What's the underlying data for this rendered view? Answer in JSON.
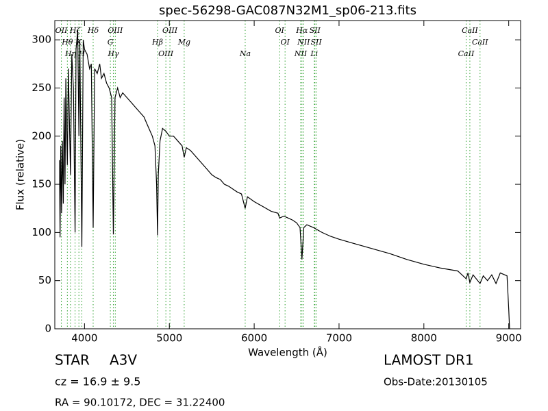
{
  "chart_data": {
    "type": "line",
    "title": "spec-56298-GAC087N32M1_sp06-213.fits",
    "x_label": "Wavelength (Å)",
    "y_label": "Flux (relative)",
    "color": "#000000",
    "xlim": [
      3650,
      9140
    ],
    "ylim": [
      0,
      320
    ],
    "xticks": [
      4000,
      5000,
      6000,
      7000,
      8000,
      9000
    ],
    "yticks": [
      0,
      50,
      100,
      150,
      200,
      250,
      300
    ],
    "x": [
      3705,
      3712,
      3720,
      3730,
      3740,
      3750,
      3760,
      3770,
      3780,
      3798,
      3810,
      3835,
      3850,
      3870,
      3889,
      3900,
      3920,
      3934,
      3945,
      3969,
      3985,
      4000,
      4030,
      4060,
      4080,
      4102,
      4120,
      4150,
      4180,
      4200,
      4230,
      4260,
      4290,
      4320,
      4340,
      4360,
      4390,
      4420,
      4450,
      4500,
      4550,
      4600,
      4650,
      4700,
      4750,
      4800,
      4830,
      4850,
      4861,
      4870,
      4890,
      4920,
      4960,
      5000,
      5050,
      5100,
      5150,
      5175,
      5200,
      5250,
      5300,
      5350,
      5400,
      5450,
      5500,
      5550,
      5600,
      5650,
      5700,
      5750,
      5800,
      5850,
      5894,
      5920,
      6000,
      6100,
      6200,
      6280,
      6300,
      6350,
      6400,
      6450,
      6500,
      6540,
      6563,
      6585,
      6620,
      6700,
      6800,
      6900,
      7000,
      7200,
      7400,
      7600,
      7800,
      8000,
      8200,
      8400,
      8498,
      8520,
      8542,
      8580,
      8662,
      8700,
      8750,
      8800,
      8850,
      8900,
      8980,
      9000,
      9010
    ],
    "values": [
      175,
      95,
      190,
      120,
      195,
      130,
      240,
      150,
      260,
      170,
      270,
      160,
      285,
      250,
      100,
      290,
      310,
      200,
      300,
      85,
      300,
      290,
      285,
      270,
      275,
      105,
      270,
      265,
      275,
      260,
      265,
      255,
      250,
      240,
      98,
      240,
      250,
      240,
      245,
      240,
      235,
      230,
      225,
      220,
      210,
      200,
      190,
      150,
      97,
      160,
      195,
      208,
      205,
      200,
      200,
      195,
      190,
      178,
      188,
      185,
      180,
      175,
      170,
      165,
      160,
      157,
      155,
      150,
      148,
      145,
      142,
      140,
      125,
      137,
      132,
      127,
      122,
      120,
      115,
      117,
      115,
      113,
      110,
      105,
      72,
      105,
      108,
      105,
      100,
      96,
      93,
      88,
      83,
      78,
      72,
      67,
      63,
      60,
      52,
      58,
      48,
      56,
      47,
      55,
      50,
      56,
      47,
      58,
      55,
      20,
      0
    ],
    "line_color": "#2ca02c",
    "lines": [
      {
        "label": "OII",
        "wavelength": 3727
      },
      {
        "label": "Hθ",
        "wavelength": 3798
      },
      {
        "label": "Hη",
        "wavelength": 3835
      },
      {
        "label": "Hζ",
        "wavelength": 3889
      },
      {
        "label": "K",
        "wavelength": 3934
      },
      {
        "label": "H",
        "wavelength": 3969
      },
      {
        "label": "Hδ",
        "wavelength": 4102
      },
      {
        "label": "G",
        "wavelength": 4305
      },
      {
        "label": "Hγ",
        "wavelength": 4340
      },
      {
        "label": "OIII",
        "wavelength": 4363
      },
      {
        "label": "Hβ",
        "wavelength": 4861
      },
      {
        "label": "OIII",
        "wavelength": 4959
      },
      {
        "label": "OIII",
        "wavelength": 5007
      },
      {
        "label": "Mg",
        "wavelength": 5175
      },
      {
        "label": "Na",
        "wavelength": 5894
      },
      {
        "label": "OI",
        "wavelength": 6300
      },
      {
        "label": "OI",
        "wavelength": 6364
      },
      {
        "label": "NII",
        "wavelength": 6548
      },
      {
        "label": "Hα",
        "wavelength": 6563
      },
      {
        "label": "NII",
        "wavelength": 6583
      },
      {
        "label": "Li",
        "wavelength": 6708
      },
      {
        "label": "SII",
        "wavelength": 6716
      },
      {
        "label": "SII",
        "wavelength": 6731
      },
      {
        "label": "CaII",
        "wavelength": 8498
      },
      {
        "label": "CaII",
        "wavelength": 8542
      },
      {
        "label": "CaII",
        "wavelength": 8662
      }
    ]
  },
  "footer": {
    "object_class": "STAR",
    "subclass": "A3V",
    "redshift": "cz = 16.9 ± 9.5",
    "coords": "RA = 90.10172, DEC = 31.22400",
    "survey": "LAMOST DR1",
    "obs_date": "Obs-Date:20130105"
  }
}
